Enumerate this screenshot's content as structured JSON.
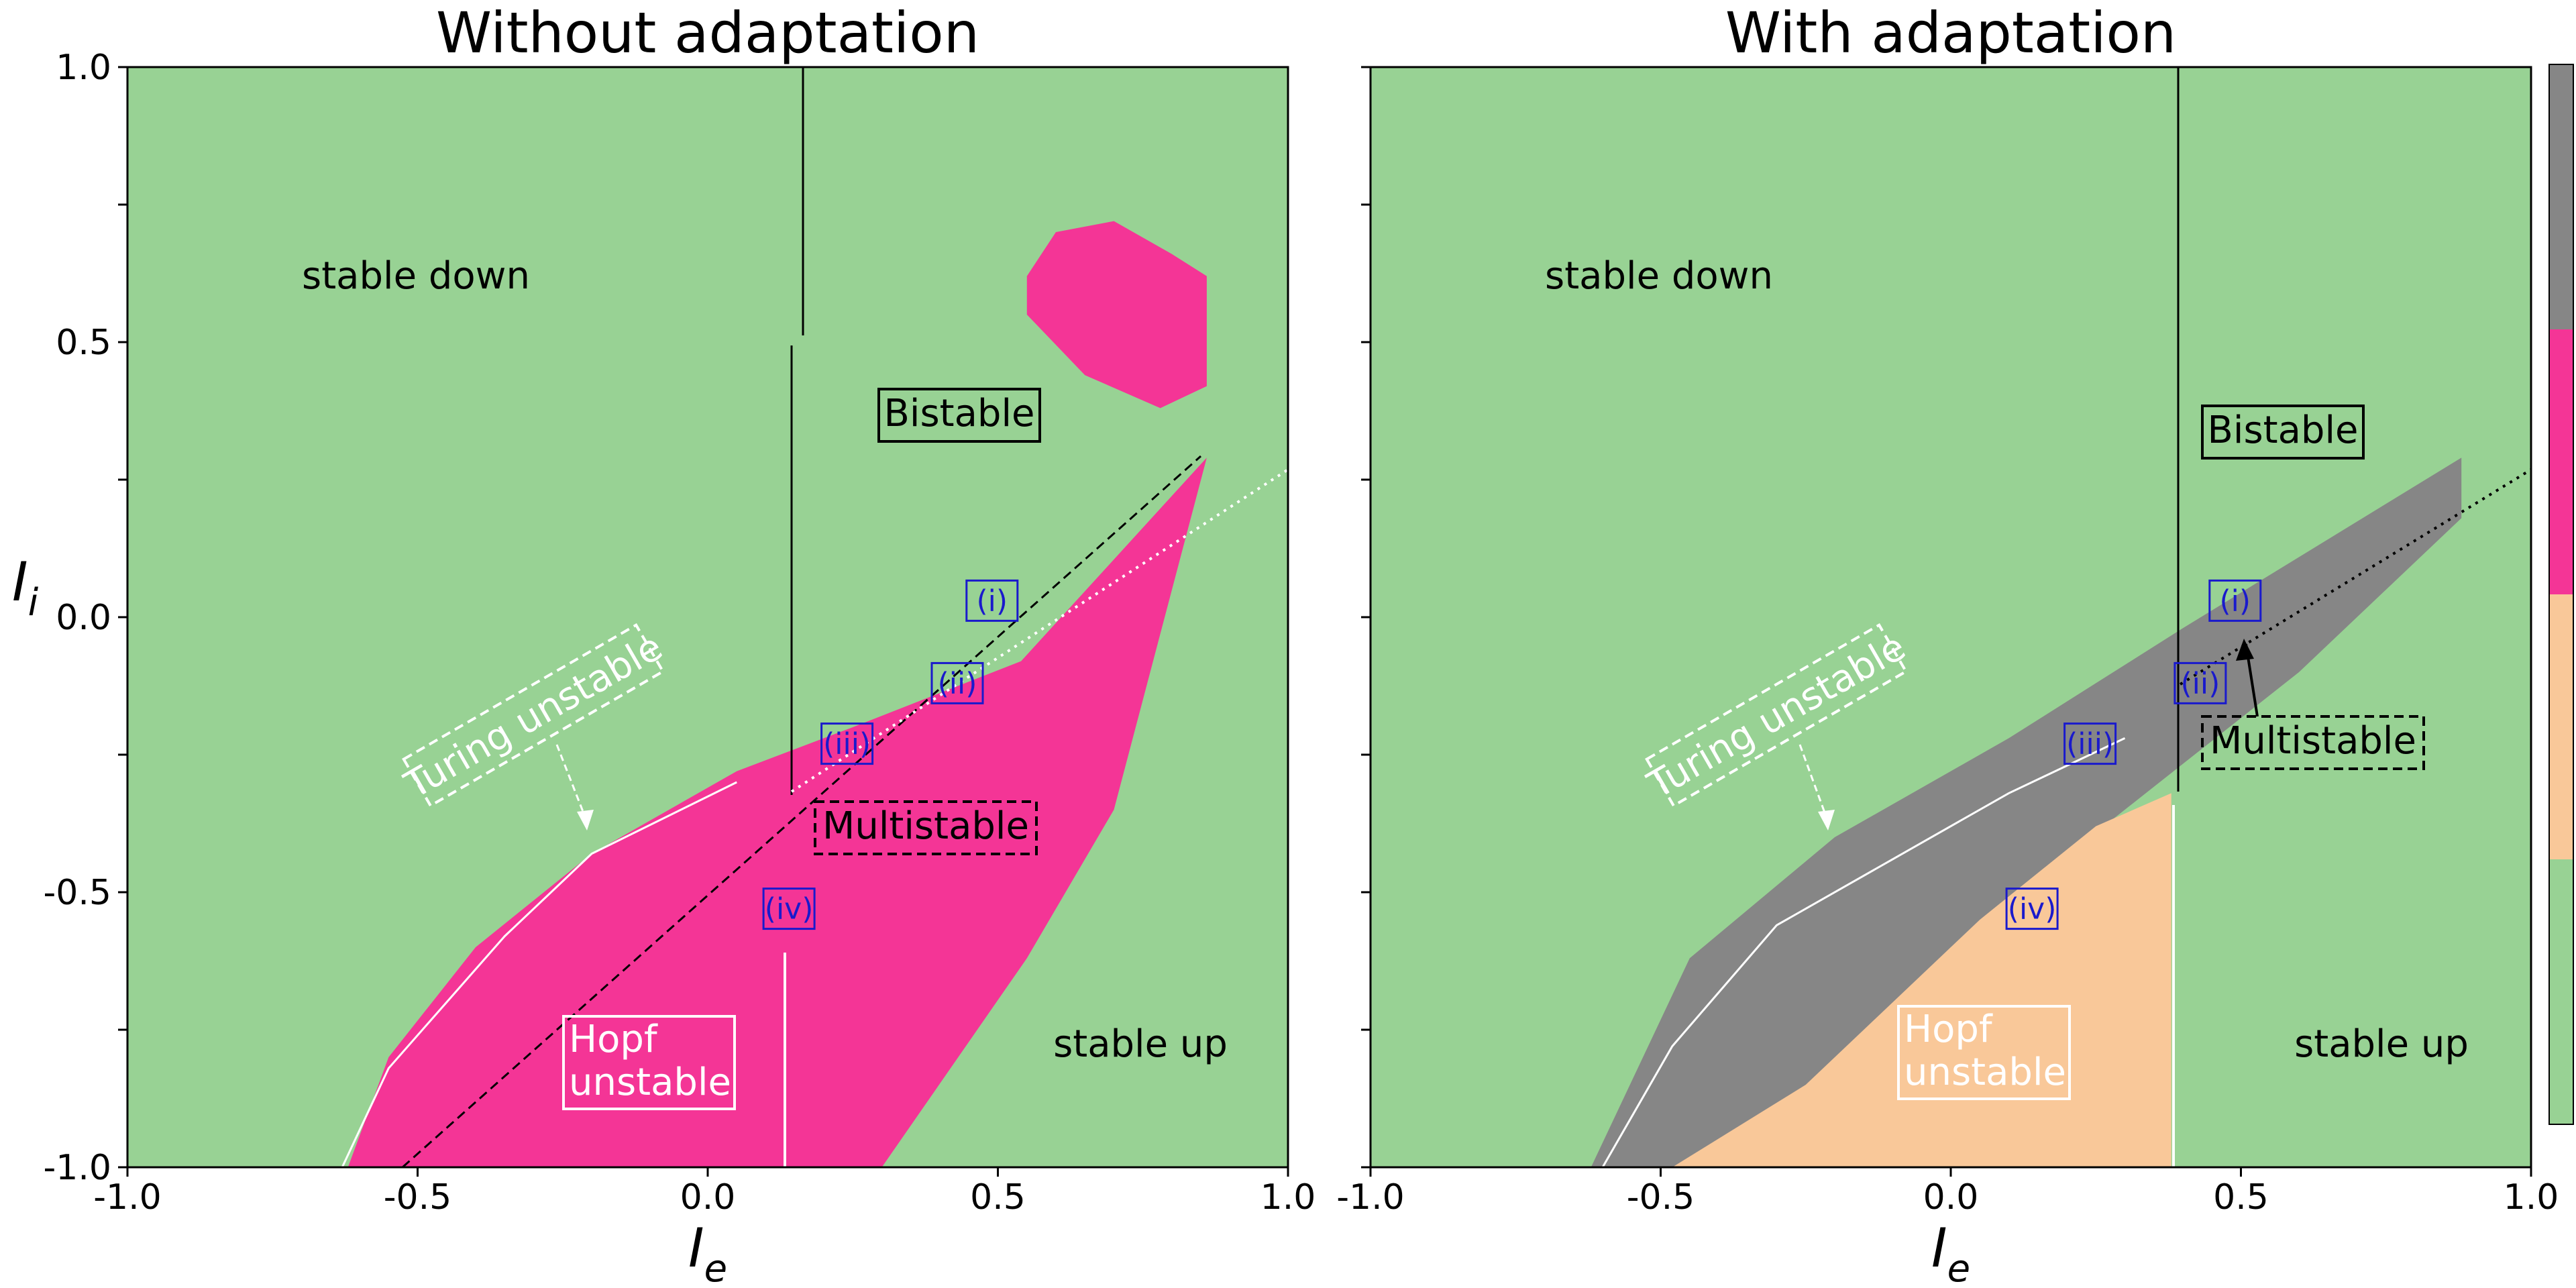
{
  "chart_data": [
    {
      "type": "heatmap",
      "title": "Without adaptation",
      "xlabel": "I",
      "xlabel_sub": "e",
      "ylabel": "I",
      "ylabel_sub": "i",
      "xlim": [
        -1.0,
        1.0
      ],
      "ylim": [
        -1.0,
        1.0
      ],
      "x_ticks": [
        "-1.0",
        "-0.5",
        "0.0",
        "0.5",
        "1.0"
      ],
      "y_ticks": [
        "1.0",
        "0.5",
        "0.0",
        "-0.5",
        "-1.0"
      ],
      "show_y_tick_labels": true,
      "regions": {
        "stable": [
          [
            -1,
            1
          ],
          [
            1,
            1
          ],
          [
            1,
            -1
          ],
          [
            -1,
            -1
          ]
        ],
        "oscillatory": [
          [
            0.86,
            0.29
          ],
          [
            0.54,
            -0.08
          ],
          [
            0.25,
            -0.2
          ],
          [
            0.05,
            -0.28
          ],
          [
            -0.2,
            -0.43
          ],
          [
            -0.4,
            -0.6
          ],
          [
            -0.55,
            -0.8
          ],
          [
            -0.62,
            -1.0
          ],
          [
            0.3,
            -1.0
          ],
          [
            0.55,
            -0.62
          ],
          [
            0.7,
            -0.35
          ],
          [
            0.86,
            0.29
          ]
        ],
        "bistable_edge": [
          [
            -0.63,
            -1.0
          ],
          [
            -0.55,
            -0.82
          ],
          [
            -0.45,
            -0.7
          ],
          [
            -0.35,
            -0.58
          ],
          [
            -0.2,
            -0.43
          ],
          [
            0.05,
            -0.3
          ]
        ],
        "top_blob": [
          [
            0.55,
            0.62
          ],
          [
            0.6,
            0.7
          ],
          [
            0.7,
            0.72
          ],
          [
            0.8,
            0.66
          ],
          [
            0.86,
            0.62
          ],
          [
            0.86,
            0.42
          ],
          [
            0.78,
            0.38
          ],
          [
            0.65,
            0.44
          ],
          [
            0.55,
            0.55
          ]
        ]
      },
      "labels": {
        "stable_down": "stable down",
        "stable_up": "stable up",
        "bistable": "Bistable",
        "multistable": "Multistable",
        "hopf": [
          "Hopf",
          "unstable"
        ],
        "turing": "Turing unstable"
      },
      "points": [
        {
          "id": "(i)",
          "x": 0.49,
          "y": 0.03
        },
        {
          "id": "(ii)",
          "x": 0.43,
          "y": -0.12
        },
        {
          "id": "(iii)",
          "x": 0.24,
          "y": -0.23
        },
        {
          "id": "(iv)",
          "x": 0.14,
          "y": -0.53
        }
      ]
    },
    {
      "type": "heatmap",
      "title": "With adaptation",
      "xlabel": "I",
      "xlabel_sub": "e",
      "xlim": [
        -1.0,
        1.0
      ],
      "ylim": [
        -1.0,
        1.0
      ],
      "x_ticks": [
        "-1.0",
        "-0.5",
        "0.0",
        "0.5",
        "1.0"
      ],
      "show_y_tick_labels": false,
      "regions": {
        "stable": [
          [
            -1,
            1
          ],
          [
            1,
            1
          ],
          [
            1,
            -1
          ],
          [
            -1,
            -1
          ]
        ],
        "oscillatory": [
          [
            0.88,
            0.29
          ],
          [
            0.4,
            -0.02
          ],
          [
            0.1,
            -0.22
          ],
          [
            -0.2,
            -0.4
          ],
          [
            -0.45,
            -0.62
          ],
          [
            -0.62,
            -1.0
          ],
          [
            -0.35,
            -1.0
          ],
          [
            0.0,
            -0.6
          ],
          [
            0.3,
            -0.35
          ],
          [
            0.6,
            -0.1
          ],
          [
            0.88,
            0.18
          ]
        ],
        "hopf_fill": [
          [
            0.38,
            -0.32
          ],
          [
            0.25,
            -0.38
          ],
          [
            0.05,
            -0.55
          ],
          [
            -0.25,
            -0.85
          ],
          [
            -0.48,
            -1.0
          ],
          [
            0.38,
            -1.0
          ]
        ],
        "bistable_edge": [
          [
            -0.6,
            -1.0
          ],
          [
            -0.48,
            -0.78
          ],
          [
            -0.3,
            -0.56
          ],
          [
            -0.1,
            -0.44
          ],
          [
            0.1,
            -0.32
          ],
          [
            0.3,
            -0.22
          ]
        ],
        "top_blob": []
      },
      "labels": {
        "stable_down": "stable down",
        "stable_up": "stable up",
        "bistable": "Bistable",
        "multistable": "Multistable",
        "hopf": [
          "Hopf",
          "unstable"
        ],
        "turing": "Turing unstable"
      },
      "points": [
        {
          "id": "(i)",
          "x": 0.49,
          "y": 0.03
        },
        {
          "id": "(ii)",
          "x": 0.43,
          "y": -0.12
        },
        {
          "id": "(iii)",
          "x": 0.24,
          "y": -0.23
        },
        {
          "id": "(iv)",
          "x": 0.14,
          "y": -0.53
        }
      ]
    }
  ],
  "colorbar": {
    "colors": [
      "#868686",
      "#f43596",
      "#f9c899",
      "#98d294"
    ]
  },
  "colors": {
    "stable": "#98d294",
    "oscillatory_no_adapt": "#f43596",
    "oscillatory_adapt": "#868686",
    "hopf_adapt": "#f9c899",
    "roman_box": "#1a1acc"
  }
}
